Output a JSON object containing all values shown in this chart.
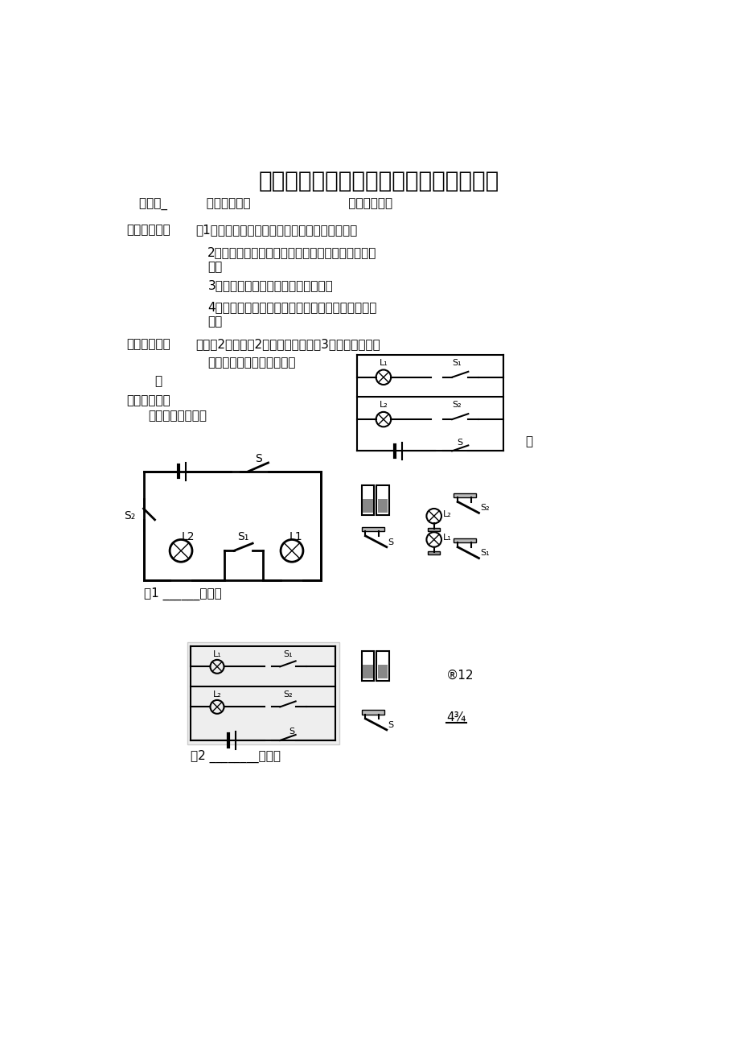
{
  "bg": "#ffffff",
  "title": "连接简单的串联电路和并联电路实验报告",
  "line1": "班级：_          小组合作者一                         活动时间：一",
  "items": [
    [
      55,
      168,
      "【实验目的】",
      true
    ],
    [
      165,
      168,
      "：1、初步学会串联电路、并联电路的连接方法。",
      false
    ],
    [
      185,
      205,
      "2、了解串联电路、并联电路中开关的连接和控制作",
      false
    ],
    [
      185,
      228,
      "用。",
      false
    ],
    [
      185,
      258,
      "3、了解串联电路和并联电路的特点。",
      false
    ],
    [
      185,
      293,
      "4、通过电路的连接等，培养学生良好的电学实验习",
      false
    ],
    [
      185,
      316,
      "惯。",
      false
    ],
    [
      55,
      353,
      "【实验器材】",
      true
    ],
    [
      165,
      353,
      "小灯泡2只，灯座2个、电池组，开关3个，导线若干。",
      false
    ],
    [
      185,
      383,
      "串联电路和并联电路各有什",
      false
    ],
    [
      100,
      413,
      "乙",
      false
    ],
    [
      55,
      443,
      "【实验过程】",
      true
    ],
    [
      90,
      468,
      "（一）提出问题：",
      false
    ]
  ],
  "fig1_text": "图1 ______电路图",
  "fig2_text": "图2 ________电路图",
  "note_zheng": "整",
  "note_812": "®12",
  "note_frac": "4¾"
}
